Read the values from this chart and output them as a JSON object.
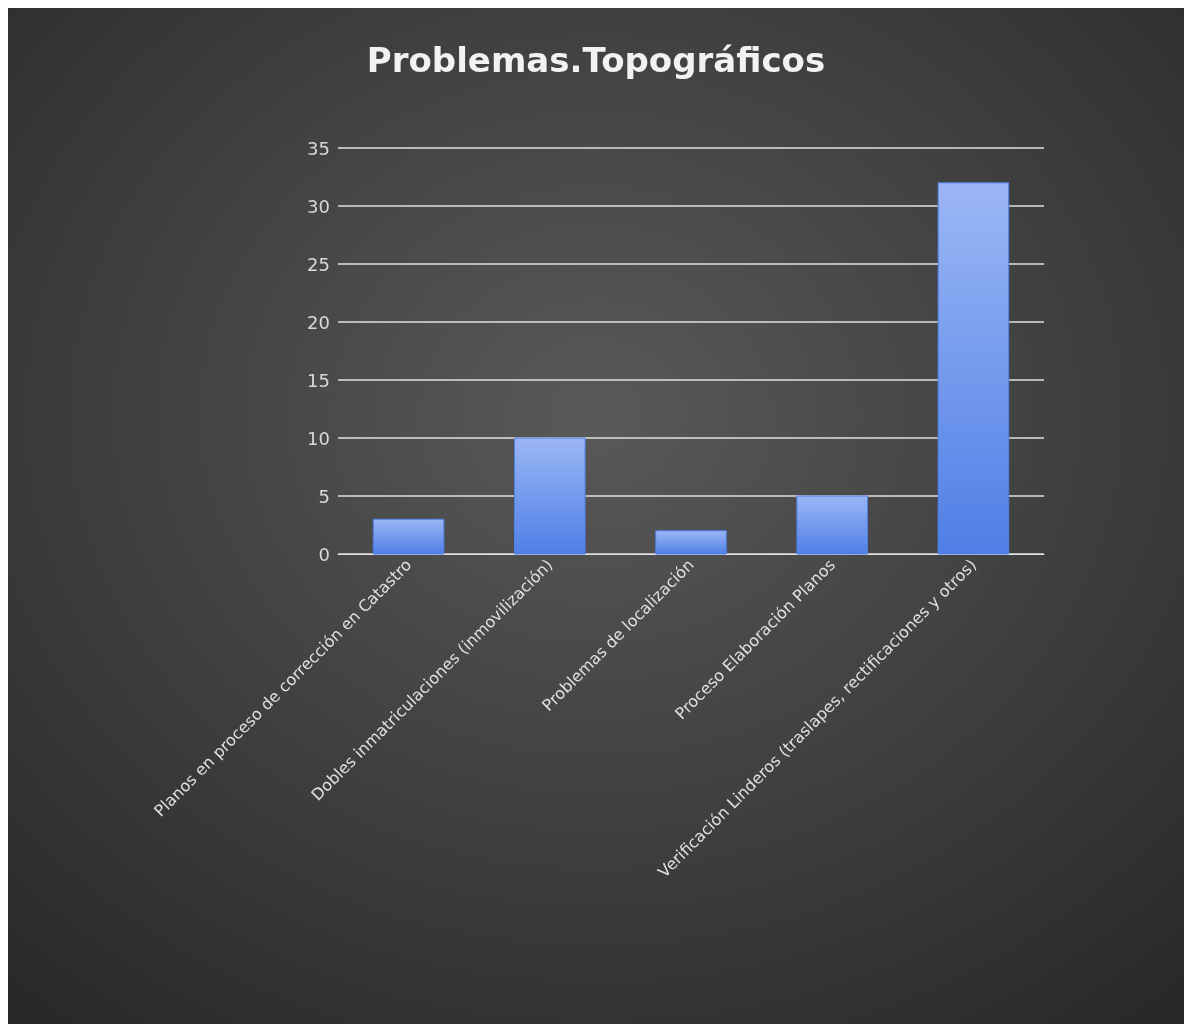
{
  "chart_data": {
    "type": "bar",
    "title": "Problemas.Topográficos",
    "categories": [
      "Planos en proceso de corrección en Catastro",
      "Dobles inmatriculaciones (inmovilización)",
      "Problemas de localización",
      "Proceso Elaboración Planos",
      "Verificación Linderos (traslapes, rectificaciones y otros)"
    ],
    "values": [
      3,
      10,
      2,
      5,
      32
    ],
    "color": "#4f7fe6",
    "ylim": [
      0,
      35
    ],
    "yticks": [
      0,
      5,
      10,
      15,
      20,
      25,
      30,
      35
    ],
    "grid": "y"
  }
}
